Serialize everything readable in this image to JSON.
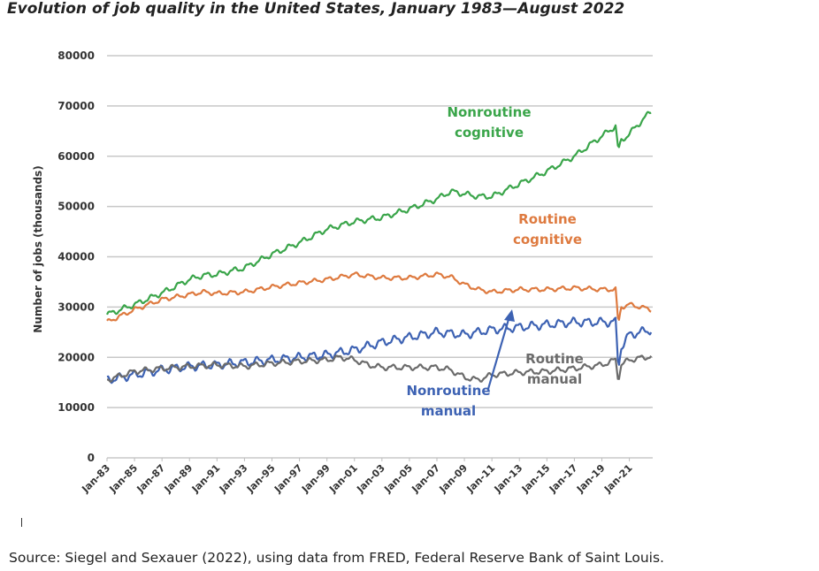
{
  "title": "Evolution of job quality in the United States, January 1983—August 2022",
  "source": "Source: Siegel and Sexauer (2022), using data from FRED, Federal Reserve Bank of Saint Louis.",
  "chart_data": {
    "type": "line",
    "title": "Evolution of job quality in the United States, January 1983—August 2022",
    "xlabel": "",
    "ylabel": "Number of jobs (thousands)",
    "ylim": [
      0,
      80000
    ],
    "yticks": [
      "0",
      "10000",
      "20000",
      "30000",
      "40000",
      "50000",
      "60000",
      "70000",
      "80000"
    ],
    "xticks": [
      "Jan-83",
      "Jan-85",
      "Jan-87",
      "Jan-89",
      "Jan-91",
      "Jan-93",
      "Jan-95",
      "Jan-97",
      "Jan-99",
      "Jan-01",
      "Jan-03",
      "Jan-05",
      "Jan-07",
      "Jan-09",
      "Jan-11",
      "Jan-13",
      "Jan-15",
      "Jan-17",
      "Jan-19",
      "Jan-21"
    ],
    "grid": true,
    "legend": "none (direct labels)",
    "series": [
      {
        "name": "Nonroutine cognitive",
        "label_lines": [
          "Nonroutine",
          "cognitive"
        ],
        "color": "#3aa54a",
        "x": [
          1983,
          1985,
          1987,
          1989,
          1990,
          1991,
          1993,
          1995,
          1997,
          1999,
          2001,
          2003,
          2005,
          2007,
          2008,
          2009,
          2010,
          2011,
          2013,
          2015,
          2017,
          2019,
          2020.0,
          2020.2,
          2020.4,
          2021,
          2022.6
        ],
        "y": [
          28500,
          30500,
          32800,
          35500,
          36300,
          36500,
          37800,
          40500,
          42800,
          45500,
          47000,
          47800,
          49500,
          51500,
          53000,
          52500,
          52000,
          52000,
          54500,
          57000,
          60000,
          64000,
          66000,
          61000,
          63000,
          64500,
          69000
        ]
      },
      {
        "name": "Routine cognitive",
        "label_lines": [
          "Routine",
          "cognitive"
        ],
        "color": "#de7a3f",
        "x": [
          1983,
          1985,
          1987,
          1989,
          1990,
          1991,
          1993,
          1995,
          1997,
          1999,
          2001,
          2003,
          2005,
          2007,
          2008,
          2009,
          2010,
          2011,
          2013,
          2015,
          2017,
          2019,
          2020.0,
          2020.2,
          2020.4,
          2021,
          2022.6
        ],
        "y": [
          27000,
          29500,
          31500,
          32500,
          33000,
          32700,
          33000,
          34000,
          34800,
          35500,
          36500,
          35800,
          35800,
          36500,
          36000,
          34500,
          33500,
          33000,
          33500,
          33500,
          33800,
          33500,
          33500,
          26500,
          30000,
          30500,
          29500
        ]
      },
      {
        "name": "Nonroutine manual",
        "label_lines": [
          "Nonroutine",
          "manual"
        ],
        "color": "#3d62b3",
        "x": [
          1983,
          1985,
          1987,
          1989,
          1991,
          1993,
          1995,
          1997,
          1999,
          2001,
          2003,
          2005,
          2007,
          2009,
          2011,
          2013,
          2015,
          2017,
          2019,
          2020.0,
          2020.2,
          2020.4,
          2021,
          2022.6
        ],
        "y": [
          15500,
          16500,
          17500,
          18200,
          18500,
          19000,
          19500,
          20000,
          20500,
          21500,
          23000,
          24000,
          25000,
          24500,
          25500,
          26000,
          26500,
          27000,
          27000,
          27000,
          18000,
          22000,
          24500,
          25500
        ]
      },
      {
        "name": "Routine manual",
        "label_lines": [
          "Routine",
          "manual"
        ],
        "color": "#6b6b6b",
        "x": [
          1983,
          1985,
          1987,
          1989,
          1991,
          1993,
          1995,
          1997,
          1999,
          2000,
          2001,
          2002,
          2003,
          2005,
          2007,
          2008,
          2009,
          2010,
          2011,
          2013,
          2015,
          2017,
          2019,
          2020.0,
          2020.2,
          2020.4,
          2021,
          2022.6
        ],
        "y": [
          15500,
          17200,
          17800,
          18200,
          18500,
          18200,
          18800,
          19200,
          19500,
          20000,
          19500,
          18500,
          18000,
          18000,
          18000,
          17500,
          16000,
          15500,
          16500,
          17000,
          17200,
          17800,
          18500,
          19500,
          15500,
          18500,
          19500,
          20200
        ]
      }
    ]
  }
}
